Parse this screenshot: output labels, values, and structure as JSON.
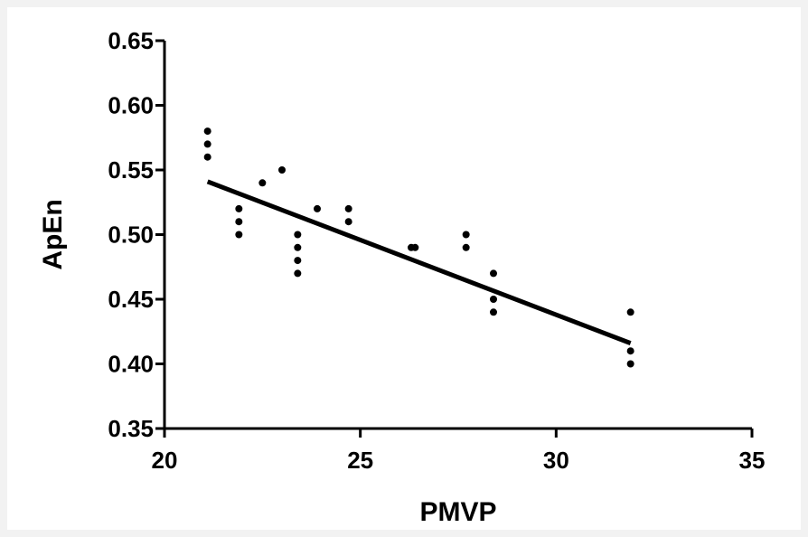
{
  "chart_data": {
    "type": "scatter",
    "title": "",
    "xlabel": "PMVP",
    "ylabel": "ApEn",
    "xlim": [
      20,
      35
    ],
    "ylim": [
      0.35,
      0.65
    ],
    "x_ticks": [
      "20",
      "25",
      "30",
      "35"
    ],
    "y_ticks": [
      "0.35",
      "0.40",
      "0.45",
      "0.50",
      "0.55",
      "0.60",
      "0.65"
    ],
    "grid": false,
    "legend": "none",
    "point_color": "#000000",
    "points": [
      {
        "x": 21.1,
        "y": 0.58
      },
      {
        "x": 21.1,
        "y": 0.57
      },
      {
        "x": 21.1,
        "y": 0.56
      },
      {
        "x": 21.9,
        "y": 0.52
      },
      {
        "x": 21.9,
        "y": 0.51
      },
      {
        "x": 21.9,
        "y": 0.5
      },
      {
        "x": 22.5,
        "y": 0.54
      },
      {
        "x": 23.0,
        "y": 0.55
      },
      {
        "x": 23.4,
        "y": 0.5
      },
      {
        "x": 23.4,
        "y": 0.49
      },
      {
        "x": 23.4,
        "y": 0.48
      },
      {
        "x": 23.4,
        "y": 0.47
      },
      {
        "x": 23.9,
        "y": 0.52
      },
      {
        "x": 24.7,
        "y": 0.52
      },
      {
        "x": 24.7,
        "y": 0.51
      },
      {
        "x": 26.3,
        "y": 0.49
      },
      {
        "x": 26.4,
        "y": 0.49
      },
      {
        "x": 27.7,
        "y": 0.5
      },
      {
        "x": 27.7,
        "y": 0.49
      },
      {
        "x": 28.4,
        "y": 0.47
      },
      {
        "x": 28.4,
        "y": 0.45
      },
      {
        "x": 28.4,
        "y": 0.44
      },
      {
        "x": 31.9,
        "y": 0.44
      },
      {
        "x": 31.9,
        "y": 0.41
      },
      {
        "x": 31.9,
        "y": 0.4
      }
    ],
    "regression_line": {
      "x": [
        21.1,
        31.9
      ],
      "y": [
        0.541,
        0.416
      ]
    }
  }
}
